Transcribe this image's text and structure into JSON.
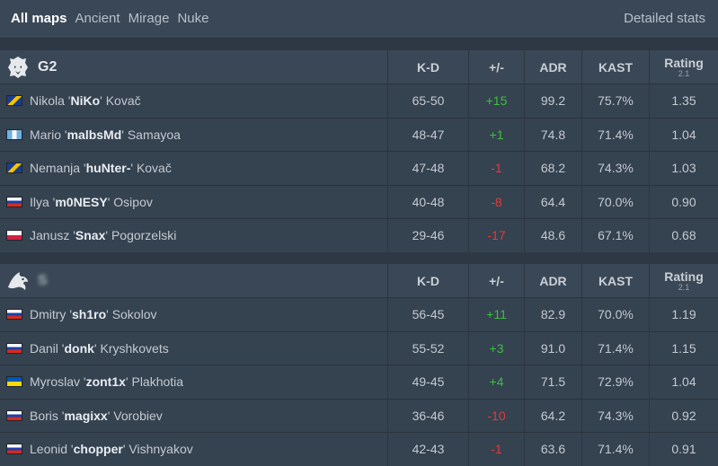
{
  "tabs": [
    {
      "label": "All maps",
      "active": true
    },
    {
      "label": "Ancient",
      "active": false
    },
    {
      "label": "Mirage",
      "active": false
    },
    {
      "label": "Nuke",
      "active": false
    }
  ],
  "detailed_stats": "Detailed stats",
  "headers": {
    "kd": "K-D",
    "pm": "+/-",
    "adr": "ADR",
    "kast": "KAST",
    "rating": "Rating",
    "rating_sub": "2.1"
  },
  "teams": [
    {
      "name": "G2",
      "players": [
        {
          "first": "Nikola",
          "nick": "NiKo",
          "last": "Kovač",
          "flag": "ba",
          "kd": "65-50",
          "pm": "+15",
          "adr": "99.2",
          "kast": "75.7%",
          "rating": "1.35"
        },
        {
          "first": "Mario",
          "nick": "malbsMd",
          "last": "Samayoa",
          "flag": "gt",
          "kd": "48-47",
          "pm": "+1",
          "adr": "74.8",
          "kast": "71.4%",
          "rating": "1.04"
        },
        {
          "first": "Nemanja",
          "nick": "huNter-",
          "last": "Kovač",
          "flag": "ba",
          "kd": "47-48",
          "pm": "-1",
          "adr": "68.2",
          "kast": "74.3%",
          "rating": "1.03"
        },
        {
          "first": "Ilya",
          "nick": "m0NESY",
          "last": "Osipov",
          "flag": "ru",
          "kd": "40-48",
          "pm": "-8",
          "adr": "64.4",
          "kast": "70.0%",
          "rating": "0.90"
        },
        {
          "first": "Janusz",
          "nick": "Snax",
          "last": "Pogorzelski",
          "flag": "pl",
          "kd": "29-46",
          "pm": "-17",
          "adr": "48.6",
          "kast": "67.1%",
          "rating": "0.68"
        }
      ]
    },
    {
      "name": "S",
      "players": [
        {
          "first": "Dmitry",
          "nick": "sh1ro",
          "last": "Sokolov",
          "flag": "ru",
          "kd": "56-45",
          "pm": "+11",
          "adr": "82.9",
          "kast": "70.0%",
          "rating": "1.19"
        },
        {
          "first": "Danil",
          "nick": "donk",
          "last": "Kryshkovets",
          "flag": "ru",
          "kd": "55-52",
          "pm": "+3",
          "adr": "91.0",
          "kast": "71.4%",
          "rating": "1.15"
        },
        {
          "first": "Myroslav",
          "nick": "zont1x",
          "last": "Plakhotia",
          "flag": "ua",
          "kd": "49-45",
          "pm": "+4",
          "adr": "71.5",
          "kast": "72.9%",
          "rating": "1.04"
        },
        {
          "first": "Boris",
          "nick": "magixx",
          "last": "Vorobiev",
          "flag": "ru",
          "kd": "36-46",
          "pm": "-10",
          "adr": "64.2",
          "kast": "74.3%",
          "rating": "0.92"
        },
        {
          "first": "Leonid",
          "nick": "chopper",
          "last": "Vishnyakov",
          "flag": "ru",
          "kd": "42-43",
          "pm": "-1",
          "adr": "63.6",
          "kast": "71.4%",
          "rating": "0.91"
        }
      ]
    }
  ],
  "colors": {
    "positive": "#3fbf3f",
    "negative": "#e23b3b"
  }
}
